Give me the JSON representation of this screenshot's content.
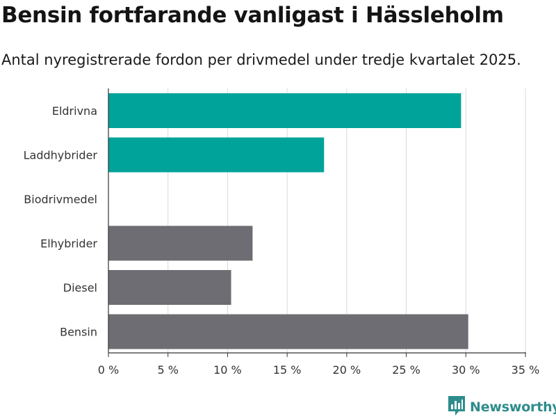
{
  "header": {
    "title": "Bensin fortfarande vanligast i Hässleholm",
    "subtitle": "Antal nyregistrerade fordon per drivmedel under tredje kvartalet 2025."
  },
  "branding": {
    "name": "Newsworthy",
    "icon": "newsworthy-logo-icon",
    "color": "#2f8c8c"
  },
  "colors": {
    "electric": "#00a399",
    "fossil": "#6e6d73",
    "grid": "#d9d9d9",
    "axis": "#333333"
  },
  "chart_data": {
    "type": "bar",
    "orientation": "horizontal",
    "title": "Bensin fortfarande vanligast i Hässleholm",
    "subtitle": "Antal nyregistrerade fordon per drivmedel under tredje kvartalet 2025.",
    "xlabel": "",
    "ylabel": "",
    "unit": "%",
    "xlim": [
      0,
      35
    ],
    "ticks": [
      0,
      5,
      10,
      15,
      20,
      25,
      30,
      35
    ],
    "tick_labels": [
      "0 %",
      "5 %",
      "10 %",
      "15 %",
      "20 %",
      "25 %",
      "30 %",
      "35 %"
    ],
    "grid": true,
    "categories": [
      "Eldrivna",
      "Laddhybrider",
      "Biodrivmedel",
      "Elhybrider",
      "Diesel",
      "Bensin"
    ],
    "values": [
      29.6,
      18.1,
      0,
      12.1,
      10.3,
      30.2
    ],
    "groups": [
      "electric",
      "electric",
      "electric",
      "fossil",
      "fossil",
      "fossil"
    ]
  }
}
